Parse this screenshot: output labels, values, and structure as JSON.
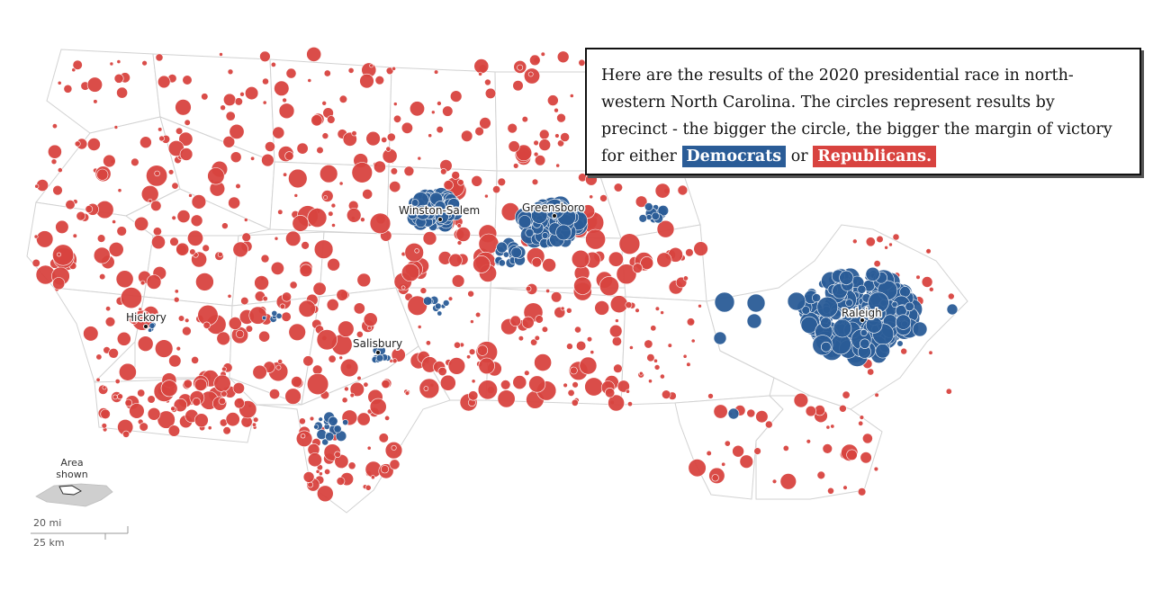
{
  "legend": {
    "text_before": "Here are the results of the 2020 presidential race in north-western North Carolina. The circles represent results by precinct - the bigger the circle, the bigger the margin of victory for either",
    "dem_label": "Democrats",
    "or_text": "or",
    "rep_label": "Republicans.",
    "dem_color": "#2a5c97",
    "rep_color": "#d8433f"
  },
  "cities": [
    {
      "name": "Winston-Salem"
    },
    {
      "name": "Greensboro"
    },
    {
      "name": "Hickory"
    },
    {
      "name": "Salisbury"
    },
    {
      "name": "Raleigh"
    }
  ],
  "locator": {
    "label_line1": "Area",
    "label_line2": "shown"
  },
  "scale": {
    "miles": "20 mi",
    "km": "25 km"
  }
}
